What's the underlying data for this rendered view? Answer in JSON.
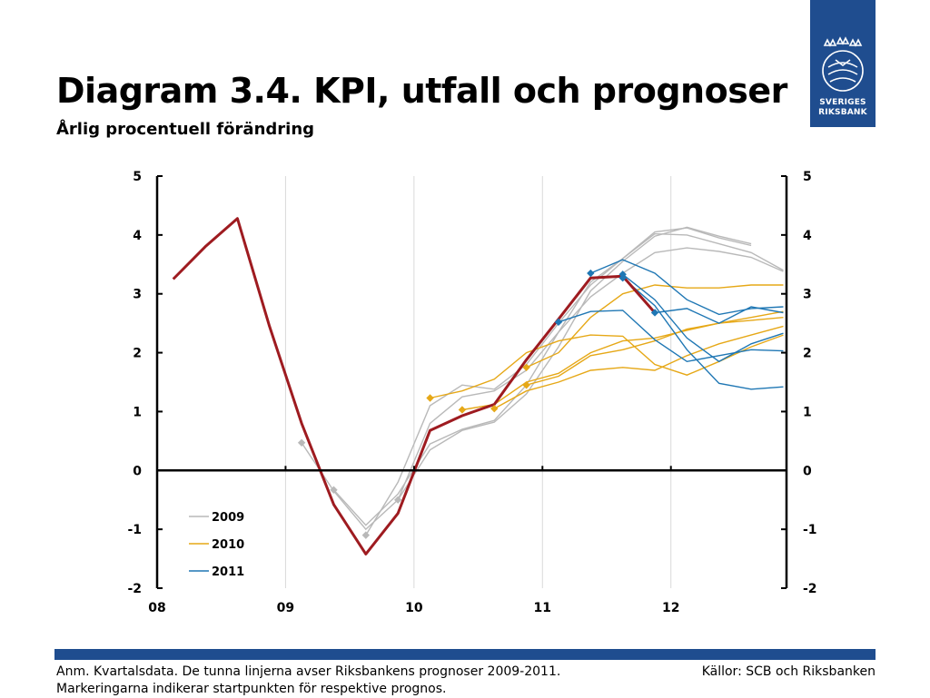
{
  "header": {
    "title": "Diagram 3.4. KPI, utfall och prognoser",
    "subtitle": "Årlig procentuell förändring"
  },
  "logo": {
    "line1": "SVERIGES",
    "line2": "RIKSBANK",
    "color": "#1f4d8f"
  },
  "footer": {
    "note": "Anm. Kvartalsdata. De tunna linjerna avser Riksbankens prognoser 2009-2011. Markeringarna indikerar startpunkten för respektive prognos.",
    "sources": "Källor: SCB och Riksbanken",
    "bar_color": "#1f4d8f"
  },
  "chart_data": {
    "type": "line",
    "xlim": [
      2008.0,
      2012.9
    ],
    "ylim": [
      -2,
      5
    ],
    "y_ticks": [
      5,
      4,
      3,
      2,
      1,
      0,
      -1,
      -2
    ],
    "y_tick_labels_left": [
      "5",
      "4",
      "3",
      "2",
      "1",
      "0",
      "-1",
      "-2"
    ],
    "y_tick_labels_right": [
      "5",
      "4",
      "3",
      "2",
      "1",
      "0",
      "-1",
      "-2"
    ],
    "x_ticks": [
      2008,
      2009,
      2010,
      2011,
      2012
    ],
    "x_tick_labels": [
      "08",
      "09",
      "10",
      "11",
      "12"
    ],
    "grid": "vertical",
    "legend": {
      "placement": "bottom-left",
      "items": [
        {
          "label": "2009",
          "color": "#b9b9b9"
        },
        {
          "label": "2010",
          "color": "#e6a817"
        },
        {
          "label": "2011",
          "color": "#1f77b4"
        }
      ]
    },
    "outcome": {
      "color": "#9e1b20",
      "points": [
        [
          2008.125,
          3.25
        ],
        [
          2008.375,
          3.8
        ],
        [
          2008.625,
          4.28
        ],
        [
          2008.875,
          2.45
        ],
        [
          2009.125,
          0.8
        ],
        [
          2009.375,
          -0.58
        ],
        [
          2009.625,
          -1.42
        ],
        [
          2009.875,
          -0.73
        ],
        [
          2010.125,
          0.68
        ],
        [
          2010.375,
          0.93
        ],
        [
          2010.625,
          1.12
        ],
        [
          2010.875,
          1.88
        ],
        [
          2011.125,
          2.57
        ],
        [
          2011.375,
          3.27
        ],
        [
          2011.625,
          3.3
        ],
        [
          2011.875,
          2.68
        ]
      ]
    },
    "forecasts": [
      {
        "vintage": "2009",
        "color": "#b9b9b9",
        "marker": [
          2009.125,
          0.47
        ],
        "points": [
          [
            2009.125,
            0.47
          ],
          [
            2009.375,
            -0.35
          ],
          [
            2009.625,
            -1.0
          ],
          [
            2009.875,
            -0.5
          ],
          [
            2010.125,
            0.35
          ],
          [
            2010.375,
            0.68
          ],
          [
            2010.625,
            0.82
          ],
          [
            2010.875,
            1.3
          ],
          [
            2011.125,
            2.1
          ],
          [
            2011.375,
            3.05
          ],
          [
            2011.625,
            3.55
          ],
          [
            2011.875,
            3.98
          ],
          [
            2012.125,
            4.13
          ],
          [
            2012.375,
            3.98
          ],
          [
            2012.625,
            3.85
          ]
        ]
      },
      {
        "vintage": "2009",
        "color": "#b9b9b9",
        "marker": [
          2009.375,
          -0.33
        ],
        "points": [
          [
            2009.375,
            -0.33
          ],
          [
            2009.625,
            -0.93
          ],
          [
            2009.875,
            -0.4
          ],
          [
            2010.125,
            0.45
          ],
          [
            2010.375,
            0.7
          ],
          [
            2010.625,
            0.85
          ],
          [
            2010.875,
            1.45
          ],
          [
            2011.125,
            2.35
          ],
          [
            2011.375,
            3.2
          ],
          [
            2011.625,
            3.6
          ],
          [
            2011.875,
            4.02
          ],
          [
            2012.125,
            4.0
          ],
          [
            2012.375,
            3.85
          ],
          [
            2012.625,
            3.7
          ],
          [
            2012.875,
            3.4
          ]
        ]
      },
      {
        "vintage": "2009",
        "color": "#b9b9b9",
        "marker": [
          2009.625,
          -1.1
        ],
        "points": [
          [
            2009.625,
            -1.1
          ],
          [
            2009.875,
            -0.2
          ],
          [
            2010.125,
            1.1
          ],
          [
            2010.375,
            1.45
          ],
          [
            2010.625,
            1.38
          ],
          [
            2010.875,
            1.8
          ],
          [
            2011.125,
            2.5
          ],
          [
            2011.375,
            3.15
          ],
          [
            2011.625,
            3.6
          ],
          [
            2011.875,
            4.05
          ],
          [
            2012.125,
            4.12
          ],
          [
            2012.375,
            3.95
          ],
          [
            2012.625,
            3.82
          ]
        ]
      },
      {
        "vintage": "2009",
        "color": "#b9b9b9",
        "marker": [
          2009.875,
          -0.5
        ],
        "points": [
          [
            2009.875,
            -0.5
          ],
          [
            2010.125,
            0.8
          ],
          [
            2010.375,
            1.25
          ],
          [
            2010.625,
            1.35
          ],
          [
            2010.875,
            1.7
          ],
          [
            2011.125,
            2.35
          ],
          [
            2011.375,
            2.95
          ],
          [
            2011.625,
            3.35
          ],
          [
            2011.875,
            3.7
          ],
          [
            2012.125,
            3.78
          ],
          [
            2012.375,
            3.72
          ],
          [
            2012.625,
            3.62
          ],
          [
            2012.875,
            3.38
          ]
        ]
      },
      {
        "vintage": "2010",
        "color": "#e6a817",
        "marker": [
          2010.125,
          1.23
        ],
        "points": [
          [
            2010.125,
            1.23
          ],
          [
            2010.375,
            1.35
          ],
          [
            2010.625,
            1.55
          ],
          [
            2010.875,
            2.0
          ],
          [
            2011.125,
            2.2
          ],
          [
            2011.375,
            2.3
          ],
          [
            2011.625,
            2.28
          ],
          [
            2011.875,
            1.8
          ],
          [
            2012.125,
            1.62
          ],
          [
            2012.375,
            1.85
          ],
          [
            2012.625,
            2.1
          ],
          [
            2012.875,
            2.3
          ]
        ]
      },
      {
        "vintage": "2010",
        "color": "#e6a817",
        "marker": [
          2010.375,
          1.03
        ],
        "points": [
          [
            2010.375,
            1.03
          ],
          [
            2010.625,
            1.12
          ],
          [
            2010.875,
            1.5
          ],
          [
            2011.125,
            1.65
          ],
          [
            2011.375,
            2.0
          ],
          [
            2011.625,
            2.2
          ],
          [
            2011.875,
            2.25
          ],
          [
            2012.125,
            2.38
          ],
          [
            2012.375,
            2.5
          ],
          [
            2012.625,
            2.6
          ],
          [
            2012.875,
            2.7
          ]
        ]
      },
      {
        "vintage": "2010",
        "color": "#e6a817",
        "marker": [
          2010.625,
          1.05
        ],
        "points": [
          [
            2010.625,
            1.05
          ],
          [
            2010.875,
            1.35
          ],
          [
            2011.125,
            1.5
          ],
          [
            2011.375,
            1.7
          ],
          [
            2011.625,
            1.75
          ],
          [
            2011.875,
            1.7
          ],
          [
            2012.125,
            1.95
          ],
          [
            2012.375,
            2.15
          ],
          [
            2012.625,
            2.3
          ],
          [
            2012.875,
            2.45
          ]
        ]
      },
      {
        "vintage": "2010",
        "color": "#e6a817",
        "marker": [
          2010.875,
          1.75
        ],
        "points": [
          [
            2010.875,
            1.75
          ],
          [
            2011.125,
            2.0
          ],
          [
            2011.375,
            2.6
          ],
          [
            2011.625,
            3.0
          ],
          [
            2011.875,
            3.15
          ],
          [
            2012.125,
            3.1
          ],
          [
            2012.375,
            3.1
          ],
          [
            2012.625,
            3.15
          ],
          [
            2012.875,
            3.15
          ]
        ]
      },
      {
        "vintage": "2010",
        "color": "#e6a817",
        "marker": [
          2010.875,
          1.45
        ],
        "points": [
          [
            2010.875,
            1.45
          ],
          [
            2011.125,
            1.6
          ],
          [
            2011.375,
            1.95
          ],
          [
            2011.625,
            2.05
          ],
          [
            2011.875,
            2.2
          ],
          [
            2012.125,
            2.4
          ],
          [
            2012.375,
            2.5
          ],
          [
            2012.625,
            2.55
          ],
          [
            2012.875,
            2.6
          ]
        ]
      },
      {
        "vintage": "2011",
        "color": "#1f77b4",
        "marker": [
          2011.125,
          2.52
        ],
        "points": [
          [
            2011.125,
            2.52
          ],
          [
            2011.375,
            2.7
          ],
          [
            2011.625,
            2.72
          ],
          [
            2011.875,
            2.22
          ],
          [
            2012.125,
            1.85
          ],
          [
            2012.375,
            1.95
          ],
          [
            2012.625,
            2.05
          ],
          [
            2012.875,
            2.03
          ]
        ]
      },
      {
        "vintage": "2011",
        "color": "#1f77b4",
        "marker": [
          2011.375,
          3.35
        ],
        "points": [
          [
            2011.375,
            3.35
          ],
          [
            2011.625,
            3.58
          ],
          [
            2011.875,
            3.35
          ],
          [
            2012.125,
            2.9
          ],
          [
            2012.375,
            2.65
          ],
          [
            2012.625,
            2.75
          ],
          [
            2012.875,
            2.78
          ]
        ]
      },
      {
        "vintage": "2011",
        "color": "#1f77b4",
        "marker": [
          2011.625,
          3.33
        ],
        "points": [
          [
            2011.625,
            3.33
          ],
          [
            2011.875,
            2.9
          ],
          [
            2012.125,
            2.25
          ],
          [
            2012.375,
            1.85
          ],
          [
            2012.625,
            2.15
          ],
          [
            2012.875,
            2.33
          ]
        ]
      },
      {
        "vintage": "2011",
        "color": "#1f77b4",
        "marker": [
          2011.625,
          3.27
        ],
        "points": [
          [
            2011.625,
            3.27
          ],
          [
            2011.875,
            2.8
          ],
          [
            2012.125,
            2.05
          ],
          [
            2012.375,
            1.48
          ],
          [
            2012.625,
            1.38
          ],
          [
            2012.875,
            1.42
          ]
        ]
      },
      {
        "vintage": "2011",
        "color": "#1f77b4",
        "marker": [
          2011.875,
          2.68
        ],
        "points": [
          [
            2011.875,
            2.68
          ],
          [
            2012.125,
            2.75
          ],
          [
            2012.375,
            2.5
          ],
          [
            2012.625,
            2.78
          ],
          [
            2012.875,
            2.68
          ]
        ]
      }
    ]
  }
}
